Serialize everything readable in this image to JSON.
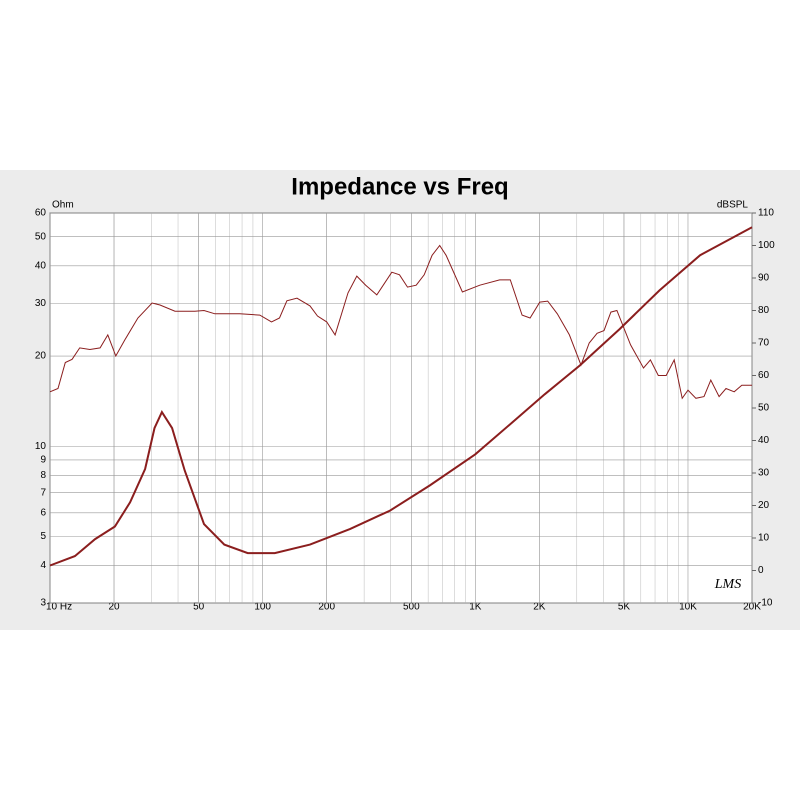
{
  "chart_data": {
    "type": "line",
    "title": "Impedance vs Freq",
    "y_label": "Ohm",
    "y2_label": "dBSPL",
    "annotation": "LMS",
    "xscale": "log",
    "yscale": "log",
    "grid": true,
    "xlim": [
      10,
      20000
    ],
    "xticks": [
      {
        "value": 10,
        "label": "10 Hz"
      },
      20,
      50,
      100,
      200,
      500,
      {
        "value": 1000,
        "label": "1K"
      },
      {
        "value": 2000,
        "label": "2K"
      },
      {
        "value": 5000,
        "label": "5K"
      },
      {
        "value": 10000,
        "label": "10K"
      },
      {
        "value": 20000,
        "label": "20K"
      }
    ],
    "ylim": [
      3,
      60
    ],
    "yticks": [
      3,
      4,
      5,
      6,
      7,
      8,
      9,
      10,
      20,
      30,
      40,
      50,
      60
    ],
    "y2lim": [
      -10,
      110
    ],
    "y2ticks": [
      -10,
      0,
      10,
      20,
      30,
      40,
      50,
      60,
      70,
      80,
      90,
      100,
      110
    ],
    "series": [
      {
        "name": "Impedance",
        "color": "#8b1e1e",
        "axis": "y",
        "width": 2,
        "x": [
          10,
          13.1,
          16.3,
          20.2,
          23.8,
          28,
          31,
          33.6,
          37.5,
          43,
          53,
          66,
          85,
          114,
          167,
          258,
          397,
          610,
          1000,
          1450,
          2120,
          3100,
          4770,
          7350,
          11400,
          20000
        ],
        "values": [
          4.0,
          4.3,
          4.9,
          5.4,
          6.5,
          8.4,
          11.5,
          13.0,
          11.5,
          8.3,
          5.5,
          4.7,
          4.4,
          4.4,
          4.7,
          5.3,
          6.1,
          7.4,
          9.4,
          11.8,
          14.9,
          18.6,
          24.6,
          33.1,
          43.4,
          53.8
        ]
      },
      {
        "name": "SPL",
        "color": "#8b1e1e",
        "axis": "y2",
        "width": 1,
        "x": [
          10,
          10.9,
          11.8,
          12.7,
          13.8,
          15.4,
          17.2,
          18.7,
          20.4,
          22.5,
          25.9,
          30.2,
          32.9,
          38.7,
          48,
          53,
          59.6,
          78,
          97,
          110,
          120,
          130,
          145,
          167,
          181,
          200,
          219,
          252,
          277,
          305,
          344,
          405,
          440,
          480,
          527,
          575,
          626,
          680,
          729,
          869,
          1050,
          1300,
          1460,
          1660,
          1810,
          2010,
          2190,
          2430,
          2770,
          3140,
          3430,
          3740,
          4030,
          4340,
          4630,
          5370,
          6180,
          6660,
          7250,
          7900,
          8610,
          9390,
          10000,
          10900,
          11900,
          12800,
          14000,
          15100,
          16500,
          17900,
          20000
        ],
        "values": [
          55,
          56,
          64,
          65,
          68.5,
          68,
          68.5,
          72.5,
          66,
          71,
          77.7,
          82.3,
          81.7,
          79.8,
          79.8,
          80,
          79,
          79,
          78.6,
          76.5,
          77.7,
          83,
          83.8,
          81.4,
          78.3,
          76.5,
          72.5,
          85.4,
          90.6,
          87.8,
          84.8,
          91.8,
          91,
          87.2,
          87.8,
          91,
          97,
          100,
          97,
          85.7,
          87.8,
          89.4,
          89.4,
          78.6,
          77.7,
          82.6,
          82.9,
          79,
          72.5,
          63.2,
          70,
          73,
          73.8,
          79.5,
          80,
          69.4,
          62.3,
          64.8,
          60,
          60,
          64.8,
          53,
          55.5,
          53,
          53.5,
          58.6,
          53.5,
          56,
          55,
          57,
          57
        ]
      }
    ]
  }
}
